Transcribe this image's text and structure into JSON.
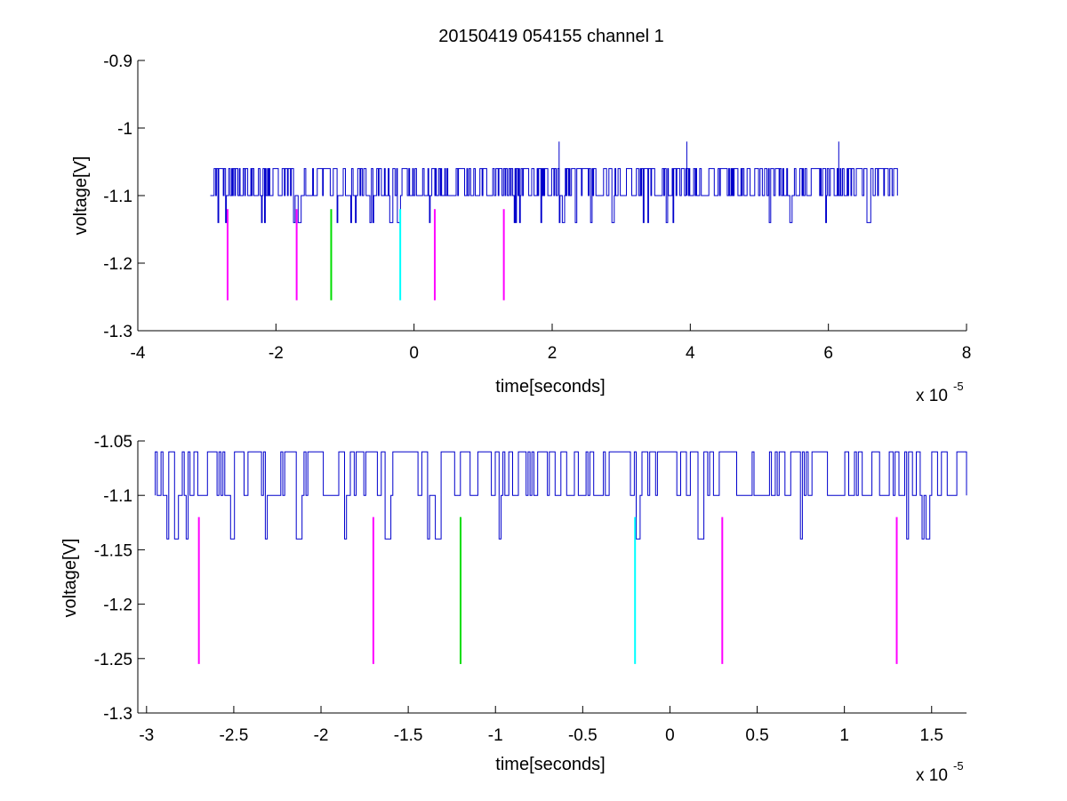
{
  "chart_data": [
    {
      "type": "line",
      "title": "20150419 054155 channel 1",
      "xlabel": "time[seconds]",
      "ylabel": "voltage[V]",
      "x_exponent_label": "x 10",
      "x_exponent_power": "-5",
      "xlim": [
        -4,
        8
      ],
      "ylim": [
        -1.3,
        -0.9
      ],
      "xticks": [
        -4,
        -2,
        0,
        2,
        4,
        6,
        8
      ],
      "xtick_labels": [
        "-4",
        "-2",
        "0",
        "2",
        "4",
        "6",
        "8"
      ],
      "yticks": [
        -0.9,
        -1,
        -1.1,
        -1.2,
        -1.3
      ],
      "ytick_labels": [
        "-0.9",
        "-1",
        "-1.1",
        "-1.2",
        "-1.3"
      ],
      "series": [
        {
          "color": "#0000cc",
          "x_range": [
            -2.95,
            7.0
          ],
          "baseline": -1.1,
          "levels": [
            -1.06,
            -1.1,
            -1.14
          ],
          "spikes": [
            [
              2.1,
              -1.02
            ],
            [
              3.95,
              -1.02
            ],
            [
              6.15,
              -1.02
            ]
          ]
        }
      ],
      "markers": [
        {
          "x": -2.7,
          "y_top": -1.12,
          "y_bottom": -1.255,
          "color": "#ff00ff"
        },
        {
          "x": -1.7,
          "y_top": -1.12,
          "y_bottom": -1.255,
          "color": "#ff00ff"
        },
        {
          "x": -1.2,
          "y_top": -1.12,
          "y_bottom": -1.255,
          "color": "#00dd00"
        },
        {
          "x": -0.2,
          "y_top": -1.12,
          "y_bottom": -1.255,
          "color": "#00ffff"
        },
        {
          "x": 0.3,
          "y_top": -1.12,
          "y_bottom": -1.255,
          "color": "#ff00ff"
        },
        {
          "x": 1.3,
          "y_top": -1.12,
          "y_bottom": -1.255,
          "color": "#ff00ff"
        }
      ]
    },
    {
      "type": "line",
      "title": "",
      "xlabel": "time[seconds]",
      "ylabel": "voltage[V]",
      "x_exponent_label": "x 10",
      "x_exponent_power": "-5",
      "xlim": [
        -3.05,
        1.7
      ],
      "ylim": [
        -1.3,
        -1.05
      ],
      "xticks": [
        -3,
        -2.5,
        -2,
        -1.5,
        -1,
        -0.5,
        0,
        0.5,
        1,
        1.5
      ],
      "xtick_labels": [
        "-3",
        "-2.5",
        "-2",
        "-1.5",
        "-1",
        "-0.5",
        "0",
        "0.5",
        "1",
        "1.5"
      ],
      "yticks": [
        -1.05,
        -1.1,
        -1.15,
        -1.2,
        -1.25,
        -1.3
      ],
      "ytick_labels": [
        "-1.05",
        "-1.1",
        "-1.15",
        "-1.2",
        "-1.25",
        "-1.3"
      ],
      "series": [
        {
          "color": "#0000cc",
          "x_range": [
            -2.95,
            1.7
          ],
          "baseline": -1.1,
          "levels": [
            -1.06,
            -1.1,
            -1.14
          ]
        }
      ],
      "markers": [
        {
          "x": -2.7,
          "y_top": -1.12,
          "y_bottom": -1.255,
          "color": "#ff00ff"
        },
        {
          "x": -1.7,
          "y_top": -1.12,
          "y_bottom": -1.255,
          "color": "#ff00ff"
        },
        {
          "x": -1.2,
          "y_top": -1.12,
          "y_bottom": -1.255,
          "color": "#00dd00"
        },
        {
          "x": -0.2,
          "y_top": -1.12,
          "y_bottom": -1.255,
          "color": "#00ffff"
        },
        {
          "x": 0.3,
          "y_top": -1.12,
          "y_bottom": -1.255,
          "color": "#ff00ff"
        },
        {
          "x": 1.3,
          "y_top": -1.12,
          "y_bottom": -1.255,
          "color": "#ff00ff"
        }
      ]
    }
  ]
}
